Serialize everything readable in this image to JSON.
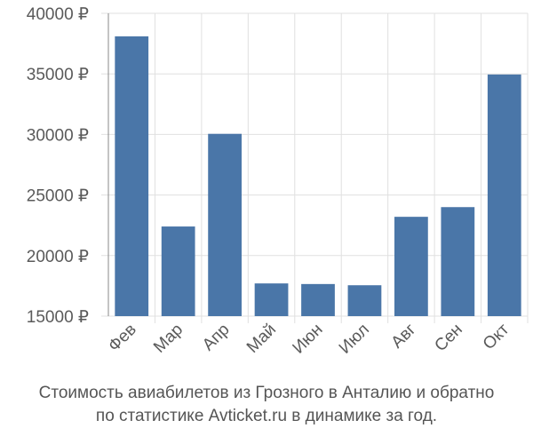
{
  "chart_data": {
    "type": "bar",
    "categories": [
      "Фев",
      "Мар",
      "Апр",
      "Май",
      "Июн",
      "Июл",
      "Авг",
      "Сен",
      "Окт"
    ],
    "values": [
      38100,
      22400,
      30050,
      17700,
      17650,
      17550,
      23200,
      24000,
      34950
    ],
    "ylim": [
      15000,
      40000
    ],
    "yticks": [
      15000,
      20000,
      25000,
      30000,
      35000,
      40000
    ],
    "ytick_labels": [
      "15000 ₽",
      "20000 ₽",
      "25000 ₽",
      "30000 ₽",
      "35000 ₽",
      "40000 ₽"
    ],
    "grid": true,
    "bar_color": "#4a76a8",
    "grid_color": "#e0e0e0"
  },
  "caption": {
    "line1": "Стоимость авиабилетов из Грозного в Анталию и обратно",
    "line2": "по статистике Avticket.ru в динамике за год."
  }
}
